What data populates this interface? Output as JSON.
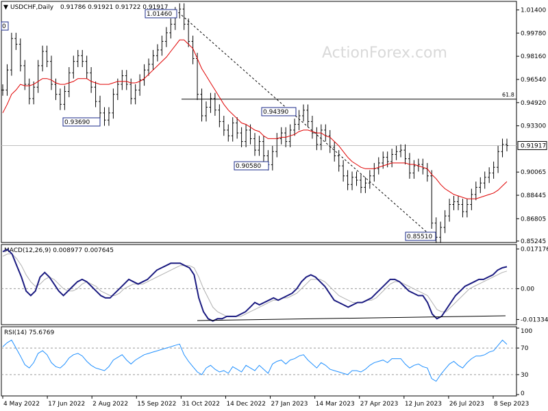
{
  "header": {
    "symbol": "USDCHF,Daily",
    "ohlc": "0.91786 0.91921 0.91722 0.91917"
  },
  "watermark": "ActionForex.com",
  "chart_data": [
    {
      "type": "line",
      "panel": "price",
      "title": "USDCHF,Daily",
      "ylim": [
        0.8524,
        1.019
      ],
      "yticks": [
        "1.01400",
        "0.99780",
        "0.98160",
        "0.96540",
        "0.94920",
        "0.93300",
        "0.91917",
        "0.90065",
        "0.88445",
        "0.86805",
        "0.85245"
      ],
      "xticks": [
        "4 May 2022",
        "17 Jun 2022",
        "2 Aug 2022",
        "15 Sep 2022",
        "31 Oct 2022",
        "14 Dec 2022",
        "27 Jan 2023",
        "14 Mar 2023",
        "27 Apr 2023",
        "12 Jun 2023",
        "26 Jul 2023",
        "8 Sep 2023"
      ],
      "last_price": "0.91917",
      "fib_label": "61.8",
      "fib_level": 0.9516,
      "series": [
        {
          "values": [
            0.958,
            0.972,
            0.994,
            0.99,
            0.975,
            0.962,
            0.952,
            0.96,
            0.975,
            0.985,
            0.978,
            0.962,
            0.955,
            0.948,
            0.957,
            0.97,
            0.978,
            0.982,
            0.978,
            0.97,
            0.96,
            0.95,
            0.942,
            0.937,
            0.942,
            0.955,
            0.962,
            0.968,
            0.962,
            0.952,
            0.958,
            0.965,
            0.972,
            0.976,
            0.982,
            0.986,
            0.992,
            0.998,
            1.004,
            1.012,
            1.0146,
            1.004,
            0.992,
            0.98,
            0.955,
            0.94,
            0.946,
            0.952,
            0.944,
            0.936,
            0.93,
            0.926,
            0.935,
            0.928,
            0.922,
            0.93,
            0.924,
            0.916,
            0.922,
            0.912,
            0.9058,
            0.915,
            0.924,
            0.928,
            0.922,
            0.93,
            0.934,
            0.94,
            0.9439,
            0.936,
            0.928,
            0.92,
            0.93,
            0.926,
            0.918,
            0.912,
            0.905,
            0.898,
            0.892,
            0.897,
            0.895,
            0.89,
            0.893,
            0.898,
            0.903,
            0.907,
            0.911,
            0.908,
            0.913,
            0.915,
            0.916,
            0.91,
            0.9,
            0.905,
            0.906,
            0.903,
            0.898,
            0.865,
            0.8551,
            0.862,
            0.87,
            0.878,
            0.88,
            0.878,
            0.873,
            0.878,
            0.885,
            0.89,
            0.893,
            0.897,
            0.9,
            0.904,
            0.915,
            0.92,
            0.9192
          ]
        },
        {
          "values": [
            0.942,
            0.948,
            0.955,
            0.958,
            0.962,
            0.961,
            0.961,
            0.962,
            0.964,
            0.966,
            0.966,
            0.965,
            0.963,
            0.962,
            0.962,
            0.963,
            0.964,
            0.966,
            0.966,
            0.966,
            0.964,
            0.963,
            0.962,
            0.962,
            0.962,
            0.963,
            0.964,
            0.964,
            0.964,
            0.963,
            0.963,
            0.964,
            0.966,
            0.969,
            0.972,
            0.975,
            0.978,
            0.981,
            0.985,
            0.989,
            0.993,
            0.993,
            0.99,
            0.987,
            0.98,
            0.973,
            0.968,
            0.963,
            0.958,
            0.953,
            0.948,
            0.944,
            0.941,
            0.938,
            0.935,
            0.934,
            0.932,
            0.93,
            0.929,
            0.926,
            0.924,
            0.924,
            0.924,
            0.925,
            0.925,
            0.926,
            0.927,
            0.929,
            0.93,
            0.93,
            0.929,
            0.928,
            0.928,
            0.926,
            0.925,
            0.922,
            0.919,
            0.915,
            0.911,
            0.908,
            0.906,
            0.904,
            0.903,
            0.903,
            0.903,
            0.904,
            0.905,
            0.906,
            0.907,
            0.907,
            0.907,
            0.907,
            0.906,
            0.906,
            0.905,
            0.904,
            0.903,
            0.899,
            0.896,
            0.892,
            0.889,
            0.887,
            0.885,
            0.884,
            0.883,
            0.882,
            0.882,
            0.882,
            0.883,
            0.884,
            0.885,
            0.886,
            0.888,
            0.891,
            0.894
          ]
        }
      ]
    },
    {
      "type": "line",
      "panel": "macd",
      "title": "MACD(12,26,9) 0.008977 0.007645",
      "ylim": [
        -0.015,
        0.0185
      ],
      "yticks": [
        "0.017176",
        "0.00",
        "-0.01334"
      ],
      "series": [
        {
          "values": [
            0.016,
            0.017,
            0.015,
            0.01,
            0.005,
            -0.001,
            -0.003,
            -0.001,
            0.005,
            0.007,
            0.005,
            0.002,
            -0.001,
            -0.003,
            -0.001,
            0.001,
            0.003,
            0.004,
            0.003,
            0.001,
            -0.001,
            -0.003,
            -0.004,
            -0.004,
            -0.002,
            0.0,
            0.002,
            0.004,
            0.003,
            0.002,
            0.003,
            0.004,
            0.006,
            0.008,
            0.009,
            0.01,
            0.011,
            0.011,
            0.011,
            0.01,
            0.009,
            0.006,
            -0.004,
            -0.01,
            -0.013,
            -0.014,
            -0.013,
            -0.013,
            -0.012,
            -0.012,
            -0.012,
            -0.011,
            -0.01,
            -0.008,
            -0.006,
            -0.007,
            -0.006,
            -0.005,
            -0.004,
            -0.005,
            -0.004,
            -0.003,
            -0.002,
            0.0,
            0.003,
            0.005,
            0.006,
            0.005,
            0.003,
            0.001,
            -0.002,
            -0.005,
            -0.006,
            -0.007,
            -0.008,
            -0.007,
            -0.006,
            -0.006,
            -0.005,
            -0.004,
            -0.002,
            0.0,
            0.002,
            0.004,
            0.004,
            0.003,
            0.001,
            -0.001,
            -0.002,
            -0.003,
            -0.003,
            -0.006,
            -0.011,
            -0.013,
            -0.012,
            -0.009,
            -0.006,
            -0.003,
            -0.001,
            0.001,
            0.002,
            0.003,
            0.004,
            0.004,
            0.005,
            0.006,
            0.008,
            0.009,
            0.0095
          ]
        },
        {
          "values": [
            0.014,
            0.015,
            0.015,
            0.013,
            0.01,
            0.006,
            0.003,
            0.001,
            0.002,
            0.004,
            0.005,
            0.004,
            0.002,
            0.0,
            -0.001,
            -0.001,
            0.0,
            0.002,
            0.003,
            0.002,
            0.001,
            -0.001,
            -0.002,
            -0.003,
            -0.003,
            -0.002,
            0.0,
            0.001,
            0.002,
            0.002,
            0.002,
            0.003,
            0.004,
            0.005,
            0.006,
            0.007,
            0.008,
            0.009,
            0.01,
            0.01,
            0.01,
            0.009,
            0.005,
            0.0,
            -0.004,
            -0.008,
            -0.01,
            -0.011,
            -0.012,
            -0.012,
            -0.012,
            -0.012,
            -0.011,
            -0.01,
            -0.009,
            -0.008,
            -0.007,
            -0.006,
            -0.005,
            -0.005,
            -0.004,
            -0.004,
            -0.003,
            -0.002,
            0.0,
            0.002,
            0.004,
            0.004,
            0.004,
            0.003,
            0.001,
            -0.001,
            -0.003,
            -0.004,
            -0.005,
            -0.006,
            -0.006,
            -0.006,
            -0.005,
            -0.005,
            -0.004,
            -0.002,
            0.0,
            0.002,
            0.003,
            0.003,
            0.002,
            0.001,
            0.0,
            -0.001,
            -0.002,
            -0.003,
            -0.006,
            -0.009,
            -0.01,
            -0.01,
            -0.008,
            -0.006,
            -0.004,
            -0.002,
            0.0,
            0.001,
            0.002,
            0.003,
            0.004,
            0.005,
            0.006,
            0.007,
            0.0076
          ]
        }
      ]
    },
    {
      "type": "line",
      "panel": "rsi",
      "title": "RSI(14) 75.6769",
      "ylim": [
        0,
        100
      ],
      "yticks": [
        "100",
        "70",
        "30",
        "0"
      ],
      "levels": [
        70,
        30
      ],
      "series": [
        {
          "values": [
            72,
            78,
            82,
            70,
            58,
            45,
            40,
            48,
            62,
            66,
            60,
            48,
            42,
            40,
            46,
            55,
            60,
            62,
            58,
            50,
            44,
            40,
            38,
            36,
            42,
            52,
            56,
            60,
            52,
            46,
            52,
            56,
            60,
            62,
            64,
            66,
            68,
            70,
            72,
            74,
            76,
            60,
            50,
            42,
            34,
            30,
            40,
            44,
            38,
            34,
            36,
            32,
            42,
            38,
            34,
            44,
            40,
            36,
            44,
            38,
            32,
            46,
            50,
            52,
            46,
            52,
            54,
            58,
            60,
            52,
            46,
            40,
            48,
            44,
            38,
            36,
            34,
            32,
            30,
            36,
            36,
            34,
            38,
            44,
            48,
            50,
            52,
            48,
            54,
            54,
            54,
            46,
            40,
            44,
            46,
            42,
            40,
            24,
            20,
            30,
            38,
            46,
            50,
            44,
            40,
            48,
            54,
            58,
            58,
            60,
            64,
            66,
            74,
            82,
            75.7
          ]
        }
      ]
    }
  ]
}
